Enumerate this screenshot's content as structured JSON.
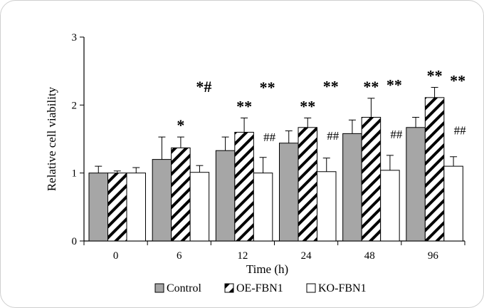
{
  "chart_data": {
    "type": "bar",
    "xlabel": "Time (h)",
    "ylabel": "Relative cell viability",
    "ylim": [
      0,
      3
    ],
    "yticks": [
      "0",
      "1",
      "2",
      "3"
    ],
    "categories": [
      "0",
      "6",
      "12",
      "24",
      "48",
      "96"
    ],
    "legend_position": "bottom",
    "grid": false,
    "series": [
      {
        "name": "Control",
        "pattern": "gray",
        "values": [
          1.0,
          1.2,
          1.33,
          1.44,
          1.58,
          1.67
        ],
        "errors": [
          0.1,
          0.33,
          0.2,
          0.18,
          0.2,
          0.15
        ],
        "annotations": [
          "",
          "",
          "",
          "",
          "",
          ""
        ]
      },
      {
        "name": "OE-FBN1",
        "pattern": "hatch",
        "values": [
          1.0,
          1.37,
          1.6,
          1.67,
          1.82,
          2.11
        ],
        "errors": [
          0.03,
          0.16,
          0.21,
          0.14,
          0.28,
          0.15
        ],
        "annotations": [
          "",
          "*",
          "**",
          "**",
          "**",
          "**"
        ]
      },
      {
        "name": "KO-FBN1",
        "pattern": "white",
        "values": [
          1.0,
          1.01,
          1.0,
          1.02,
          1.04,
          1.1
        ],
        "errors": [
          0.08,
          0.1,
          0.23,
          0.2,
          0.22,
          0.14
        ],
        "annotations": [
          "",
          "*#",
          "**",
          "**",
          "**",
          "**"
        ],
        "annotations2": [
          "",
          "",
          "##",
          "##",
          "##",
          "##"
        ]
      }
    ],
    "colors": {
      "gray": "#a6a6a6",
      "white": "#ffffff",
      "stroke": "#000000"
    }
  }
}
